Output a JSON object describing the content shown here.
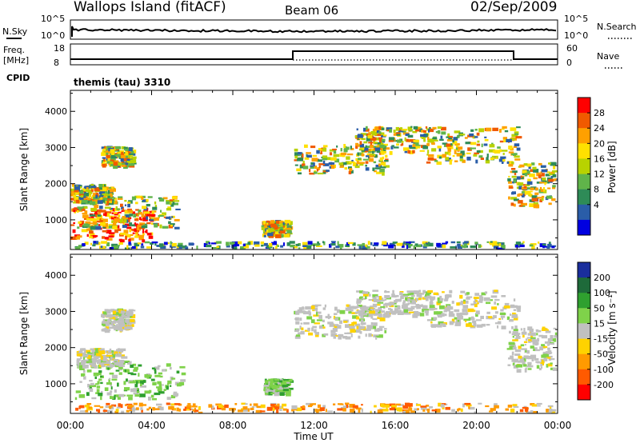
{
  "header": {
    "site": "Wallops Island (fitACF)",
    "beam": "Beam 06",
    "date": "02/Sep/2009"
  },
  "strip": {
    "nsky_label": "N.Sky",
    "nsky_ticks": [
      "10^5",
      "10^0"
    ],
    "nsearch_label": "N.Search",
    "nsearch_ticks": [
      "10^5",
      "10^0"
    ],
    "freq_label": "Freq.",
    "freq_unit": "[MHz]",
    "freq_ticks": [
      "18",
      "8"
    ],
    "nave_label": "Nave",
    "nave_ticks": [
      "60",
      "0"
    ],
    "cpid_label": "CPID",
    "cpid_value": "themis (tau) 3310"
  },
  "chart_data": [
    {
      "type": "heatmap",
      "panel": "power",
      "ylabel": "Slant Range [km]",
      "xlabel": "",
      "ylim": [
        180,
        4580
      ],
      "yticks": [
        "1000",
        "2000",
        "3000",
        "4000"
      ],
      "x_range_hours": [
        0,
        24
      ],
      "xticks": [
        "00:00",
        "04:00",
        "08:00",
        "12:00",
        "16:00",
        "20:00",
        "00:00"
      ],
      "colorbar_label": "Power [dB]",
      "colorbar_ticks": [
        "28",
        "24",
        "20",
        "16",
        "12",
        "8",
        "4"
      ],
      "colorbar_colors": [
        "#ff0000",
        "#f05a00",
        "#ffa000",
        "#ffe000",
        "#b8d200",
        "#60b44a",
        "#2e8b57",
        "#2a5da8",
        "#0000e0"
      ],
      "regions": [
        {
          "t0": 0.0,
          "t1": 4.0,
          "r0": 450,
          "r1": 1350,
          "level": "high"
        },
        {
          "t0": 0.3,
          "t1": 5.2,
          "r0": 800,
          "r1": 1700,
          "level": "mid"
        },
        {
          "t0": 0.0,
          "t1": 2.0,
          "r0": 1500,
          "r1": 2000,
          "level": "mid"
        },
        {
          "t0": 1.5,
          "t1": 3.0,
          "r0": 2500,
          "r1": 3050,
          "level": "mid"
        },
        {
          "t0": 9.4,
          "t1": 10.7,
          "r0": 580,
          "r1": 1000,
          "level": "mid"
        },
        {
          "t0": 11.0,
          "t1": 15.5,
          "r0": 2300,
          "r1": 3100,
          "level": "mid"
        },
        {
          "t0": 14.0,
          "t1": 17.5,
          "r0": 2900,
          "r1": 3600,
          "level": "mid"
        },
        {
          "t0": 17.5,
          "t1": 22.0,
          "r0": 2600,
          "r1": 3600,
          "level": "mid"
        },
        {
          "t0": 21.5,
          "t1": 24.0,
          "r0": 1400,
          "r1": 2600,
          "level": "mid"
        },
        {
          "t0": 0.0,
          "t1": 24.0,
          "r0": 180,
          "r1": 420,
          "level": "low"
        }
      ]
    },
    {
      "type": "heatmap",
      "panel": "velocity",
      "ylabel": "Slant Range [km]",
      "xlabel": "Time UT",
      "ylim": [
        180,
        4580
      ],
      "yticks": [
        "1000",
        "2000",
        "3000",
        "4000"
      ],
      "x_range_hours": [
        0,
        24
      ],
      "xticks": [
        "00:00",
        "04:00",
        "08:00",
        "12:00",
        "16:00",
        "20:00",
        "00:00"
      ],
      "colorbar_label": "Velocity [m s⁻¹]",
      "colorbar_ticks": [
        "200",
        "100",
        "50",
        "15",
        "-15",
        "-50",
        "-100",
        "-200"
      ],
      "colorbar_colors": [
        "#1a2e9c",
        "#1e6a3a",
        "#2fa02f",
        "#7fd24a",
        "#c0c0c0",
        "#ffd200",
        "#ff9a00",
        "#ff5a00",
        "#ff0000"
      ],
      "regions": [
        {
          "t0": 0.2,
          "t1": 5.5,
          "r0": 600,
          "r1": 1650,
          "level": "green"
        },
        {
          "t0": 0.3,
          "t1": 2.5,
          "r0": 1500,
          "r1": 2000,
          "level": "gray"
        },
        {
          "t0": 1.5,
          "t1": 3.0,
          "r0": 2500,
          "r1": 3100,
          "level": "gray"
        },
        {
          "t0": 9.5,
          "t1": 10.7,
          "r0": 750,
          "r1": 1150,
          "level": "green"
        },
        {
          "t0": 11.0,
          "t1": 15.5,
          "r0": 2300,
          "r1": 3200,
          "level": "gray"
        },
        {
          "t0": 14.0,
          "t1": 17.5,
          "r0": 2900,
          "r1": 3600,
          "level": "gray"
        },
        {
          "t0": 17.5,
          "t1": 22.0,
          "r0": 2600,
          "r1": 3600,
          "level": "gray"
        },
        {
          "t0": 21.5,
          "t1": 24.0,
          "r0": 1400,
          "r1": 2600,
          "level": "gray"
        },
        {
          "t0": 0.0,
          "t1": 24.0,
          "r0": 180,
          "r1": 480,
          "level": "orange"
        }
      ]
    }
  ]
}
